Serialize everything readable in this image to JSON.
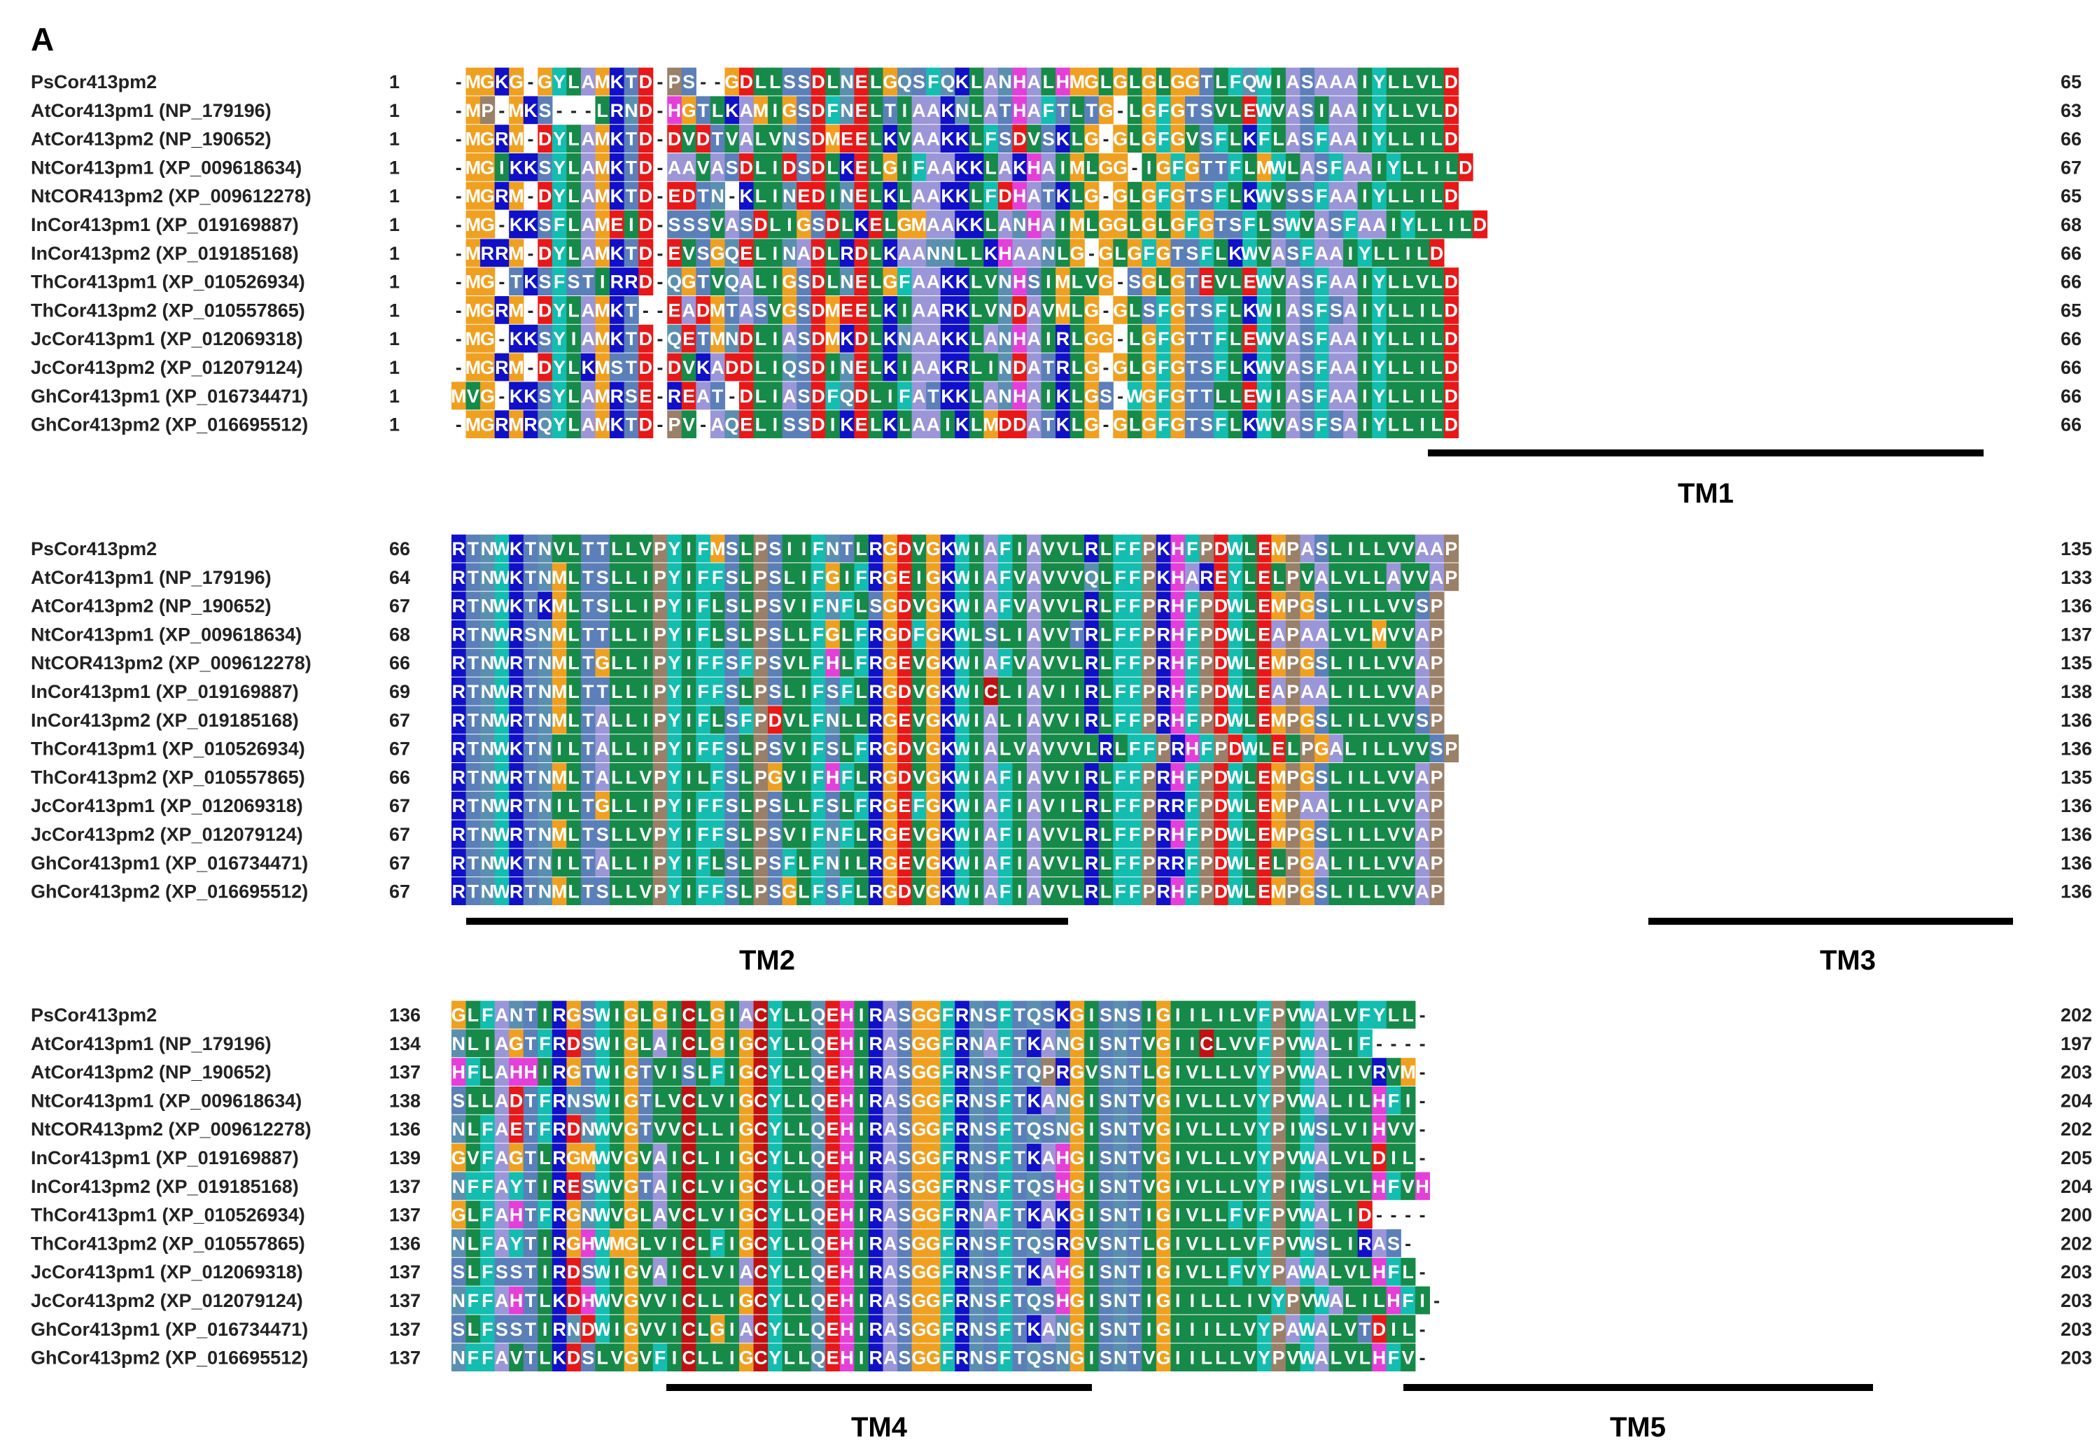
{
  "figure": {
    "panel_label": "A",
    "sequence_names": [
      "PsCor413pm2",
      "AtCor413pm1 (NP_179196)",
      "AtCor413pm2 (NP_190652)",
      "NtCor413pm1 (XP_009618634)",
      "NtCOR413pm2 (XP_009612278)",
      "InCor413pm1 (XP_019169887)",
      "InCor413pm2 (XP_019185168)",
      "ThCor413pm1 (XP_010526934)",
      "ThCor413pm2 (XP_010557865)",
      "JcCor413pm1 (XP_012069318)",
      "JcCor413pm2 (XP_012079124)",
      "GhCor413pm1 (XP_016734471)",
      "GhCor413pm2 (XP_016695512)"
    ],
    "blocks": [
      {
        "name": "block-1",
        "start": [
          "1",
          "1",
          "1",
          "1",
          "1",
          "1",
          "1",
          "1",
          "1",
          "1",
          "1",
          "1",
          "1"
        ],
        "end": [
          "65",
          "63",
          "66",
          "67",
          "65",
          "68",
          "66",
          "66",
          "65",
          "66",
          "66",
          "66",
          "66"
        ],
        "sequences": [
          "-MGKG-GYLAMKTD-PS--GDLLSSDLNELGQSFQKLANHALHMGLGLGLGGTLFQWIASAAAIYLLVLD",
          "-MP-MKS---LRND-HGTLKAMIGSDFNELTIAAKNLATHAFTLTG-LGFGTSVLEWVASIAAIYLLVLD",
          "-MGRM-DYLAMKTD-DVDTVALVNSDMEELKVAAKKLFSDVSKLG-GLGFGVSFLKFLASFAAIYLLILD",
          "-MGIKKSYLAMKTD-AAVASDLIDSDLKELGIFAAKKLAKHAIMLGG-IGFGTTFLMWLASFAAIYLLILD",
          "-MGRM-DYLAMKTD-EDTN-KLINEDINELKLAAKKLFDHATKLG-GLGFGTSFLKWVSSFAAIYLLILD",
          "-MG-KKSFLAMEID-SSSVASDLIGSDLKELGMAAKKLANHAIMLGGLGLGFGTSFLSWVASFAAIYLLILD",
          "-MRRM-DYLAMKTD-EVSGQELINADLRDLKAANNLLKHAANLG-GLGFGTSFLKWVASFAAIYLLILD",
          "-MG-TKSFSTIRRD-QGTVQALIGSDLNELGFAAKKLVNHSIMLVG-SGLGTEVLEWVASFAAIYLLVLD",
          "-MGRM-DYLAMKT--EADMTASVGSDMEELKIAARKLVNDAVMLG-GLSFGTSFLKWIASFSAIYLLILD",
          "-MG-KKSYIAMKTD-QETMNDLIASDMKDLKNAAKKLANHAIRLGG-LGFGTTFLEWVASFAAIYLLILD",
          "-MGRM-DYLKMSTD-DVKADDLIQSDINELKIAAKRLINDATRLG-GLGFGTSFLKWVASFAAIYLLILD",
          "MVG-KKSYLAMRSE-REAT-DLIASDFQDLIFATKKLANHAIKLGS-WGFGTTLLEWIASFAAIYLLILD",
          "-MGRMRQYLAMKTD-PV-AQELISSDIKELKLAAIKLMDDATKLG-GLGFGTSFLKWVASFSAIYLLILD"
        ],
        "tm_labels": [
          "TM1"
        ]
      },
      {
        "name": "block-2",
        "start": [
          "66",
          "64",
          "67",
          "68",
          "66",
          "69",
          "67",
          "67",
          "66",
          "67",
          "67",
          "67",
          "67"
        ],
        "end": [
          "135",
          "133",
          "136",
          "137",
          "135",
          "138",
          "136",
          "136",
          "135",
          "136",
          "136",
          "136",
          "136"
        ],
        "sequences": [
          "RTNWKTNVLTTLLVPYIFMSLPSIIFNTLRGDVGKWIAFIAVVLRLFFPKHFPDWLEMPASLILLVVAAP",
          "RTNWKTNMLTSLLIPYIFFSLPSLIFGIFRGEIGKWIAFVAVVVQLFFPKHAREYLELPVALVLLAVVAP",
          "RTNWKTKMLTSLLIPYIFLSLPSVIFNFLSGDVGKWIAFVAVVLRLFFPRHFPDWLEMPGSLILLVVSP",
          "RTNWRSNMLTTLLIPYIFLSLPSLLFGLFRGDFGKWLSLIAVVTRLFFPRHFPDWLEAPAALVLMVVAP",
          "RTNWRTNMLTGLLIPYIFFSFPSVLFHLFRGEVGKWIAFVAVVLRLFFPRHFPDWLEMPGSLILLVVAP",
          "RTNWRTNMLTTLLIPYIFFSLPSLIFSFLRGDVGKWICLIAVIIRLFFPRHFPDWLEAPAALILLVVAP",
          "RTNWRTNMLTALLIPYIFLSFPDVLFNLLRGEVGKWIALIAVVIRLFFPRHFPDWLEMPGSLILLVVSP",
          "RTNWKTNILTALLIPYIFFSLPSVIFSLFRGDVGKWIALVAVVVLRLFFPRHFPDWLELPGALILLVVSP",
          "RTNWRTNMLTALLVPYILFSLPGVIFHFLRGDVGKWIAFIAVVIRLFFPRHFPDWLEMPGSLILLVVAP",
          "RTNWRTNILTGLLIPYIFFSLPSLLFSLFRGEFGKWIAFIAVILRLFFPRRFPDWLEMPAALILLVVAP",
          "RTNWRTNMLTSLLVPYIFFSLPSVIFNFLRGEVGKWIAFIAVVLRLFFPRHFPDWLEMPGSLILLVVAP",
          "RTNWKTNILTALLIPYIFLSLPSFLFNILRGEVGKWIAFIAVVLRLFFPRRFPDWLELPGALILLVVAP",
          "RTNWRTNMLTSLLVPYIFFSLPSGLFSFLRGDVGKWIAFIAVVLRLFFPRHFPDWLEMPGSLILLVVAP"
        ],
        "tm_labels": [
          "TM2",
          "TM3"
        ]
      },
      {
        "name": "block-3",
        "start": [
          "136",
          "134",
          "137",
          "138",
          "136",
          "139",
          "137",
          "137",
          "136",
          "137",
          "137",
          "137",
          "137"
        ],
        "end": [
          "202",
          "197",
          "203",
          "204",
          "202",
          "205",
          "204",
          "200",
          "202",
          "203",
          "203",
          "203",
          "203"
        ],
        "sequences": [
          "GLFANTIRGSWIGLGICLGIACYLLQEHIRASGGFRNSFTQSKGISNSIGIILILVFPVWALVFYLL-",
          "NLIAGTFRDSWIGLAICLGIGCYLLQEHIRASGGFRNAFTKANGISNTVGIICLVVFPVWALIF----",
          "HFLAHHIRGTWIGTVISLFIGCYLLQEHIRASGGFRNSFTQPRGVSNTLGIVLLLVYPVWALIVRVM-",
          "SLLADTFRNSWIGTLVCLVIGCYLLQEHIRASGGFRNSFTKANGISNTVGIVLLLVYPVWALILHFI-",
          "NLFAETFRDNWVGTVVCLLIGCYLLQEHIRASGGFRNSFTQSNGISNTVGIVLLLVYPIWSLVIHVV-",
          "GVFAGTLRGMWVGVAICLIIGCYLLQEHIRASGGFRNSFTKAHGISNTVGIVLLLVYPVWALVLDIL-",
          "NFFAYTIRESWVGTAICLVIGCYLLQEHIRASGGFRNSFTQSHGISNTVGIVLLLVYPIWSLVLHFVH",
          "GLFAHTFRGNWVGLAVCLVIGCYLLQEHIRASGGFRNAFTKAKGISNTIGIVLLFVFPVWALID----",
          "NLFAYTIRGHWMGLVICLFIGCYLLQEHIRASGGFRNSFTQSRGVSNTLGIVLLLVFPVWSLIRAS-",
          "SLFSSTIRDSWIGVAICLVIACYLLQEHIRASGGFRNSFTKAHGISNTIGIVLLFVYPAWALVLHFL-",
          "NFFAHTLKDHWVGVVICLLIGCYLLQEHIRASGGFRNSFTQSHGISNTIGIILLLIVYPVWALILHFI-",
          "SLFSSTIRNDWIGVVICLGIACYLLQEHIRASGGFRNSFTKANGISNTIGIIILLVYPAWALVTDIL-",
          "NFFAVTLKDSLVGVFICLLIGCYLLQEHIRASGGFRNSFTQSNGISNTVGIILLLVYPVWALVLHFV-"
        ],
        "tm_labels": [
          "TM4",
          "TM5"
        ]
      }
    ],
    "colors": {
      "G_M_start": "#f0a020",
      "hydrophobic": "#168a48",
      "aromatic": "#13bdb0",
      "positive": "#1010c8",
      "negative": "#e81818",
      "polar": "#5b7fb8",
      "amide": "#5a8fb0",
      "small": "#9b96d8",
      "proline": "#9a8068",
      "histidine": "#e43fd8",
      "cysteine": "#c01010"
    }
  }
}
